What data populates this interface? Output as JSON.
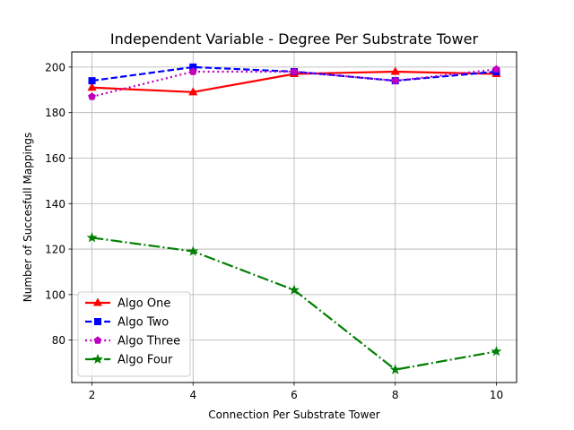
{
  "chart_data": {
    "type": "line",
    "title": "Independent Variable - Degree Per Substrate Tower",
    "xlabel": "Connection Per Substrate Tower",
    "ylabel": "Number of Succesfull Mappings",
    "x": [
      2,
      4,
      6,
      8,
      10
    ],
    "xlim": [
      1.6,
      10.4
    ],
    "ylim": [
      61.35,
      206.65
    ],
    "xticks": [
      2,
      4,
      6,
      8,
      10
    ],
    "yticks": [
      80,
      100,
      120,
      140,
      160,
      180,
      200
    ],
    "grid": true,
    "legend_position": "lower-left",
    "series": [
      {
        "name": "Algo One",
        "values": [
          191,
          189,
          197,
          198,
          197
        ],
        "color": "#ff0000",
        "linestyle": "solid",
        "marker": "triangle"
      },
      {
        "name": "Algo Two",
        "values": [
          194,
          200,
          198,
          194,
          198
        ],
        "color": "#0000ff",
        "linestyle": "dashed",
        "marker": "square"
      },
      {
        "name": "Algo Three",
        "values": [
          187,
          198,
          198,
          194,
          199
        ],
        "color": "#bf00bf",
        "linestyle": "dotted",
        "marker": "pentagon"
      },
      {
        "name": "Algo Four",
        "values": [
          125,
          119,
          102,
          67,
          75
        ],
        "color": "#008000",
        "linestyle": "dashdot",
        "marker": "star"
      }
    ]
  }
}
